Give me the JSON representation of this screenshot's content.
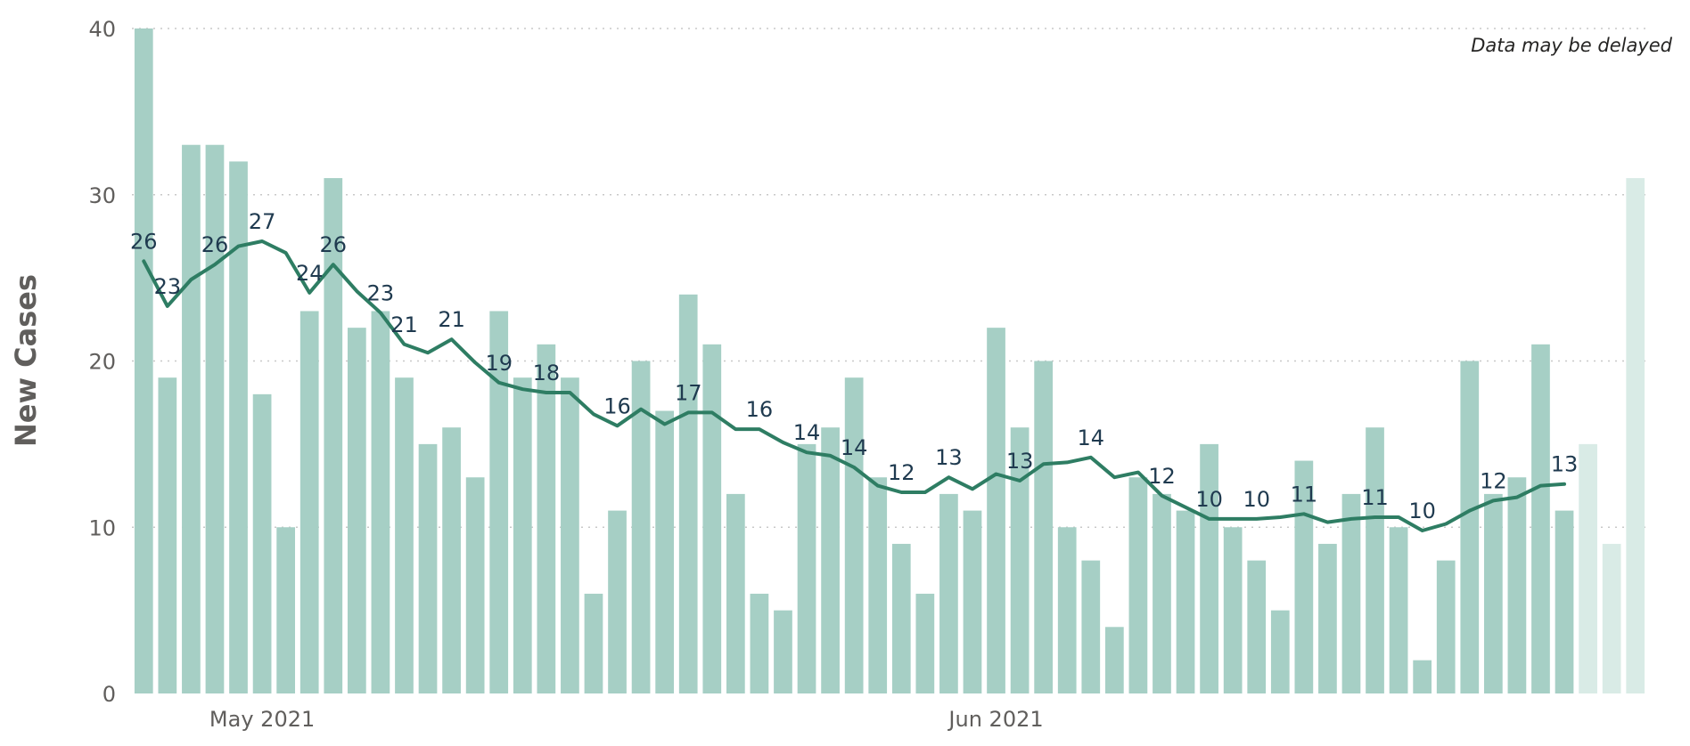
{
  "note": "Data may be delayed",
  "chart_data": {
    "type": "bar",
    "ylabel": "New Cases",
    "ylim": [
      0,
      40
    ],
    "yticks": [
      "0",
      "10",
      "20",
      "30",
      "40"
    ],
    "grid": true,
    "x_tick_labels": [
      {
        "label": "May 2021",
        "index": 5
      },
      {
        "label": "Jun 2021",
        "index": 36
      }
    ],
    "colors": {
      "bar": "#a6cfc5",
      "bar_delayed": "#d9ebe6",
      "line": "#2e7d63",
      "grid": "#c8c8c8"
    },
    "series": [
      {
        "kind": "bar",
        "values": [
          40,
          19,
          33,
          33,
          32,
          18,
          10,
          23,
          31,
          22,
          23,
          19,
          15,
          16,
          13,
          23,
          19,
          21,
          19,
          6,
          11,
          20,
          17,
          24,
          21,
          12,
          6,
          5,
          15,
          16,
          19,
          13,
          9,
          6,
          12,
          11,
          22,
          16,
          20,
          10,
          8,
          4,
          13,
          12,
          11,
          15,
          10,
          8,
          5,
          14,
          9,
          12,
          16,
          10,
          2,
          8,
          20,
          12,
          13,
          21,
          11,
          15,
          9,
          31
        ],
        "delayed_from_index": 61
      },
      {
        "kind": "line",
        "values": [
          26,
          23.3,
          24.9,
          25.8,
          26.9,
          27.2,
          26.5,
          24.1,
          25.8,
          24.2,
          22.9,
          21,
          20.5,
          21.3,
          19.9,
          18.7,
          18.3,
          18.1,
          18.1,
          16.8,
          16.1,
          17.1,
          16.2,
          16.9,
          16.9,
          15.9,
          15.9,
          15.1,
          14.5,
          14.3,
          13.6,
          12.5,
          12.1,
          12.1,
          13,
          12.3,
          13.2,
          12.8,
          13.8,
          13.9,
          14.2,
          13,
          13.3,
          11.9,
          11.2,
          10.5,
          10.5,
          10.5,
          10.6,
          10.8,
          10.3,
          10.5,
          10.6,
          10.6,
          9.8,
          10.2,
          11,
          11.6,
          11.8,
          12.5,
          12.6
        ]
      }
    ],
    "data_labels": [
      {
        "index": 0,
        "text": "26"
      },
      {
        "index": 1,
        "text": "23"
      },
      {
        "index": 3,
        "text": "26"
      },
      {
        "index": 5,
        "text": "27"
      },
      {
        "index": 7,
        "text": "24"
      },
      {
        "index": 8,
        "text": "26"
      },
      {
        "index": 10,
        "text": "23"
      },
      {
        "index": 11,
        "text": "21"
      },
      {
        "index": 13,
        "text": "21"
      },
      {
        "index": 15,
        "text": "19"
      },
      {
        "index": 17,
        "text": "18"
      },
      {
        "index": 20,
        "text": "16"
      },
      {
        "index": 23,
        "text": "17"
      },
      {
        "index": 26,
        "text": "16"
      },
      {
        "index": 28,
        "text": "14"
      },
      {
        "index": 30,
        "text": "14"
      },
      {
        "index": 32,
        "text": "12"
      },
      {
        "index": 34,
        "text": "13"
      },
      {
        "index": 37,
        "text": "13"
      },
      {
        "index": 40,
        "text": "14"
      },
      {
        "index": 43,
        "text": "12"
      },
      {
        "index": 45,
        "text": "10"
      },
      {
        "index": 47,
        "text": "10"
      },
      {
        "index": 49,
        "text": "11"
      },
      {
        "index": 52,
        "text": "11"
      },
      {
        "index": 54,
        "text": "10"
      },
      {
        "index": 57,
        "text": "12"
      },
      {
        "index": 60,
        "text": "13"
      }
    ]
  }
}
